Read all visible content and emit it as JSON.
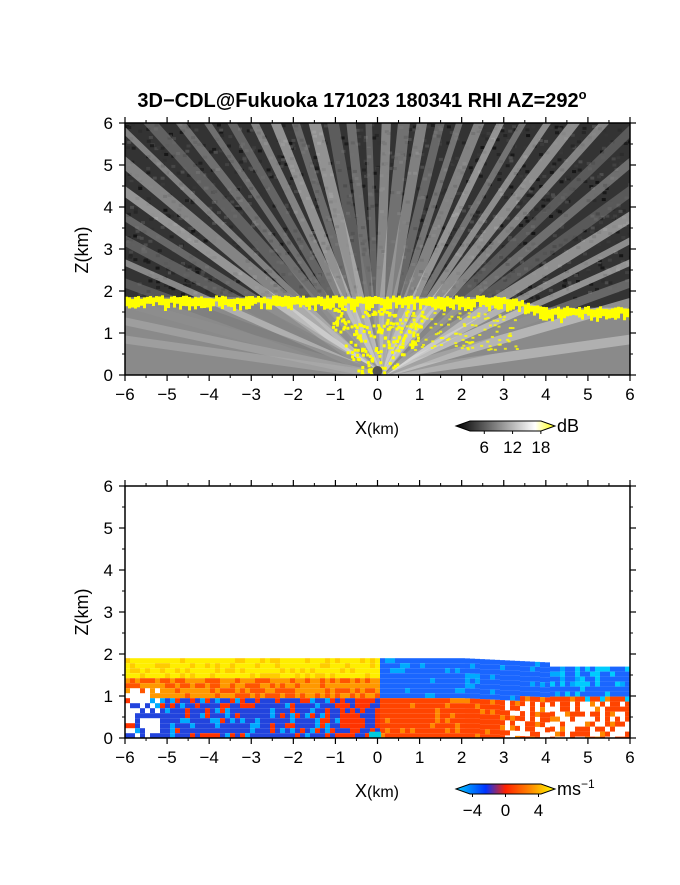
{
  "title": {
    "main": "3D−CDL@Fukuoka 171023 180341 RHI AZ=292",
    "degree_symbol": "o"
  },
  "chart_data": [
    {
      "type": "heatmap",
      "name": "reflectivity-panel",
      "xlabel_main": "X",
      "xlabel_unit": "(km)",
      "ylabel": "Z(km)",
      "xlim": [
        -6,
        6
      ],
      "ylim": [
        0,
        6
      ],
      "x_ticks": [
        "−6",
        "−5",
        "−4",
        "−3",
        "−2",
        "−1",
        "0",
        "1",
        "2",
        "3",
        "4",
        "5",
        "6"
      ],
      "y_ticks": [
        "0",
        "1",
        "2",
        "3",
        "4",
        "5",
        "6"
      ],
      "colorbar": {
        "unit": "dB",
        "tick_labels": [
          "6",
          "12",
          "18"
        ],
        "tick_values": [
          6,
          12,
          18
        ],
        "range": [
          0,
          21
        ],
        "colors": [
          "#000000",
          "#ffffff",
          "#ffff00"
        ]
      },
      "features": {
        "noise_region_top_km": 6,
        "echo_top_km": 1.85,
        "echo_top_right_km": 1.6,
        "bright_band_color": "#ffff00",
        "fan_apex_x_km": 0,
        "background_gray": "#333333"
      }
    },
    {
      "type": "heatmap",
      "name": "velocity-panel",
      "xlabel_main": "X",
      "xlabel_unit": "(km)",
      "ylabel": "Z(km)",
      "xlim": [
        -6,
        6
      ],
      "ylim": [
        0,
        6
      ],
      "x_ticks": [
        "−6",
        "−5",
        "−4",
        "−3",
        "−2",
        "−1",
        "0",
        "1",
        "2",
        "3",
        "4",
        "5",
        "6"
      ],
      "y_ticks": [
        "0",
        "1",
        "2",
        "3",
        "4",
        "5",
        "6"
      ],
      "colorbar": {
        "unit": "ms",
        "unit_exponent": "−1",
        "tick_labels": [
          "−4",
          "0",
          "4"
        ],
        "tick_values": [
          -4,
          0,
          4
        ],
        "range": [
          -6,
          6
        ],
        "colors": [
          "#00ccff",
          "#0033ff",
          "#ff2200",
          "#ff8800",
          "#ffff00"
        ]
      },
      "features": {
        "echo_top_km": 1.9,
        "left_positive_color": "#ffee00",
        "right_negative_color": "#1a66ff",
        "lower_left_negative_color": "#2244dd",
        "lower_right_positive_color": "#ff4400"
      }
    }
  ]
}
